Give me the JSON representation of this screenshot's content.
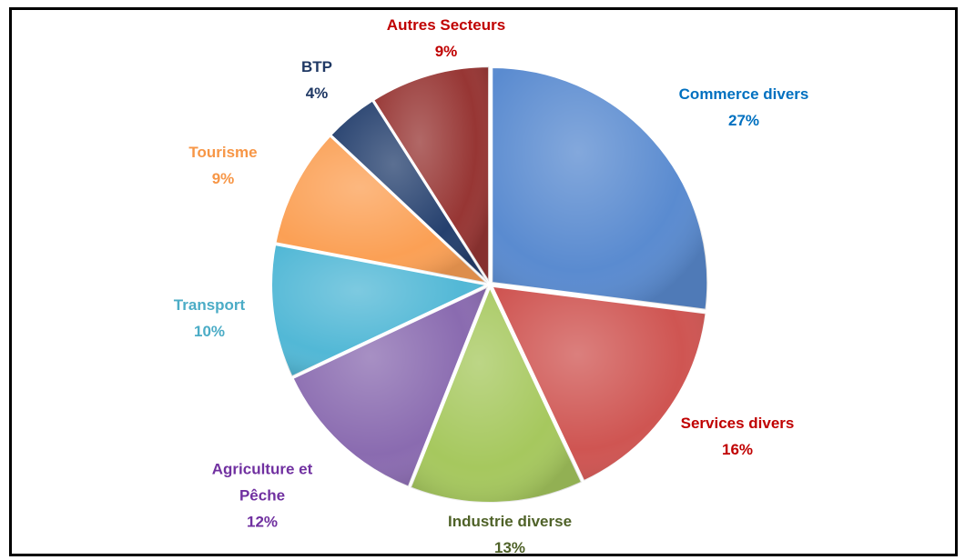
{
  "chart_data": {
    "type": "pie",
    "categories": [
      "Commerce divers",
      "Services divers",
      "Industrie diverse",
      "Agriculture et Pêche",
      "Transport",
      "Tourisme",
      "BTP",
      "Autres Secteurs"
    ],
    "values": [
      27,
      16,
      13,
      12,
      10,
      9,
      4,
      9
    ],
    "value_labels": [
      "27%",
      "16%",
      "13%",
      "12%",
      "10%",
      "9%",
      "4%",
      "9%"
    ],
    "colors": [
      "#5a8bd0",
      "#cf5552",
      "#a6c85e",
      "#8a6bb0",
      "#52b8d6",
      "#fba055",
      "#25406e",
      "#973634"
    ],
    "label_colors": [
      "#0070c0",
      "#c00000",
      "#4f6228",
      "#7030a0",
      "#4bacc6",
      "#f79646",
      "#1f3864",
      "#c00000"
    ]
  }
}
